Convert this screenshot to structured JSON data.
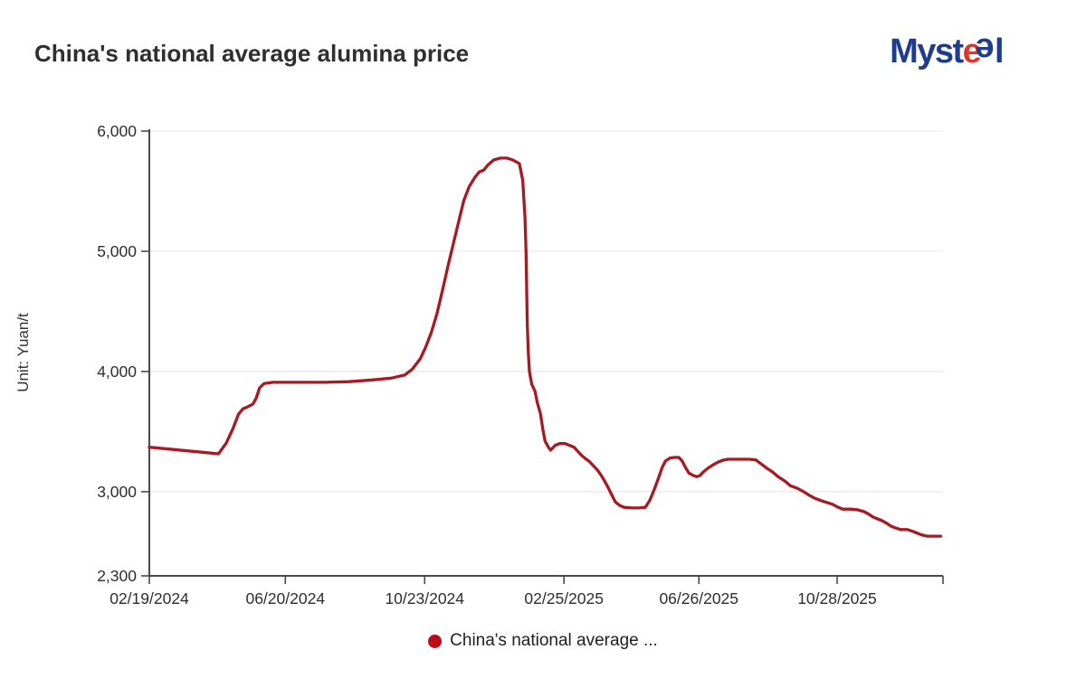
{
  "header": {
    "title": "China's national average alumina price",
    "logo": {
      "myst": "Myst",
      "e_red": "e",
      "e_flip": "e",
      "l": "l",
      "navy": "#1e3d8f",
      "red": "#e2352b"
    }
  },
  "axis_style": {
    "axis_color": "#4a4a4a",
    "grid_color": "#e8e9ec",
    "tick_label_color": "#2d2d2d"
  },
  "legend": {
    "marker_color": "#c00718"
  },
  "chart_data": {
    "type": "line",
    "title": "China's national average alumina price",
    "xlabel": "",
    "ylabel": "Unit: Yuan/t",
    "ylim": [
      2300,
      6000
    ],
    "x_range": [
      "2024-02-19",
      "2026-01-31"
    ],
    "grid": true,
    "legend_position": "bottom",
    "y_ticks": [
      {
        "value": 2300,
        "label": "2,300"
      },
      {
        "value": 3000,
        "label": "3,000"
      },
      {
        "value": 4000,
        "label": "4,000"
      },
      {
        "value": 5000,
        "label": "5,000"
      },
      {
        "value": 6000,
        "label": "6,000"
      }
    ],
    "x_ticks": [
      {
        "date": "2024-02-19",
        "label": "02/19/2024"
      },
      {
        "date": "2024-06-20",
        "label": "06/20/2024"
      },
      {
        "date": "2024-10-23",
        "label": "10/23/2024"
      },
      {
        "date": "2025-02-25",
        "label": "02/25/2025"
      },
      {
        "date": "2025-06-26",
        "label": "06/26/2025"
      },
      {
        "date": "2025-10-28",
        "label": "10/28/2025"
      }
    ],
    "series": [
      {
        "name": "China's national average ...",
        "color": "#a81a22",
        "points": [
          [
            "2024-02-19",
            3370
          ],
          [
            "2024-03-07",
            3355
          ],
          [
            "2024-03-24",
            3340
          ],
          [
            "2024-04-10",
            3325
          ],
          [
            "2024-04-21",
            3315
          ],
          [
            "2024-04-28",
            3405
          ],
          [
            "2024-05-04",
            3525
          ],
          [
            "2024-05-09",
            3645
          ],
          [
            "2024-05-13",
            3690
          ],
          [
            "2024-05-17",
            3705
          ],
          [
            "2024-05-22",
            3730
          ],
          [
            "2024-05-25",
            3780
          ],
          [
            "2024-05-28",
            3865
          ],
          [
            "2024-06-01",
            3900
          ],
          [
            "2024-06-09",
            3910
          ],
          [
            "2024-07-02",
            3910
          ],
          [
            "2024-07-25",
            3910
          ],
          [
            "2024-08-16",
            3915
          ],
          [
            "2024-09-06",
            3930
          ],
          [
            "2024-09-23",
            3945
          ],
          [
            "2024-10-05",
            3970
          ],
          [
            "2024-10-12",
            4020
          ],
          [
            "2024-10-19",
            4105
          ],
          [
            "2024-10-24",
            4205
          ],
          [
            "2024-10-29",
            4325
          ],
          [
            "2024-11-03",
            4480
          ],
          [
            "2024-11-08",
            4675
          ],
          [
            "2024-11-13",
            4880
          ],
          [
            "2024-11-18",
            5075
          ],
          [
            "2024-11-23",
            5265
          ],
          [
            "2024-11-27",
            5420
          ],
          [
            "2024-12-02",
            5540
          ],
          [
            "2024-12-07",
            5615
          ],
          [
            "2024-12-11",
            5660
          ],
          [
            "2024-12-15",
            5675
          ],
          [
            "2024-12-19",
            5720
          ],
          [
            "2024-12-24",
            5760
          ],
          [
            "2024-12-30",
            5775
          ],
          [
            "2025-01-05",
            5775
          ],
          [
            "2025-01-10",
            5760
          ],
          [
            "2025-01-16",
            5730
          ],
          [
            "2025-01-19",
            5590
          ],
          [
            "2025-01-21",
            5280
          ],
          [
            "2025-01-22",
            4985
          ],
          [
            "2025-01-23",
            4400
          ],
          [
            "2025-01-24",
            4155
          ],
          [
            "2025-01-25",
            4000
          ],
          [
            "2025-01-27",
            3895
          ],
          [
            "2025-01-30",
            3835
          ],
          [
            "2025-02-01",
            3745
          ],
          [
            "2025-02-04",
            3645
          ],
          [
            "2025-02-06",
            3520
          ],
          [
            "2025-02-08",
            3420
          ],
          [
            "2025-02-11",
            3370
          ],
          [
            "2025-02-13",
            3345
          ],
          [
            "2025-02-17",
            3385
          ],
          [
            "2025-02-21",
            3400
          ],
          [
            "2025-02-26",
            3400
          ],
          [
            "2025-03-02",
            3385
          ],
          [
            "2025-03-06",
            3370
          ],
          [
            "2025-03-09",
            3340
          ],
          [
            "2025-03-13",
            3300
          ],
          [
            "2025-03-17",
            3270
          ],
          [
            "2025-03-20",
            3250
          ],
          [
            "2025-03-23",
            3220
          ],
          [
            "2025-03-27",
            3180
          ],
          [
            "2025-03-30",
            3140
          ],
          [
            "2025-04-02",
            3095
          ],
          [
            "2025-04-05",
            3045
          ],
          [
            "2025-04-09",
            2970
          ],
          [
            "2025-04-12",
            2915
          ],
          [
            "2025-04-16",
            2885
          ],
          [
            "2025-04-20",
            2870
          ],
          [
            "2025-04-27",
            2865
          ],
          [
            "2025-05-03",
            2865
          ],
          [
            "2025-05-09",
            2870
          ],
          [
            "2025-05-13",
            2930
          ],
          [
            "2025-05-17",
            3020
          ],
          [
            "2025-05-21",
            3120
          ],
          [
            "2025-05-24",
            3200
          ],
          [
            "2025-05-27",
            3255
          ],
          [
            "2025-05-31",
            3280
          ],
          [
            "2025-06-04",
            3285
          ],
          [
            "2025-06-08",
            3285
          ],
          [
            "2025-06-11",
            3255
          ],
          [
            "2025-06-14",
            3200
          ],
          [
            "2025-06-17",
            3155
          ],
          [
            "2025-06-21",
            3135
          ],
          [
            "2025-06-24",
            3125
          ],
          [
            "2025-06-27",
            3135
          ],
          [
            "2025-06-30",
            3165
          ],
          [
            "2025-07-04",
            3195
          ],
          [
            "2025-07-09",
            3225
          ],
          [
            "2025-07-13",
            3245
          ],
          [
            "2025-07-17",
            3260
          ],
          [
            "2025-07-22",
            3270
          ],
          [
            "2025-07-28",
            3270
          ],
          [
            "2025-08-04",
            3270
          ],
          [
            "2025-08-10",
            3270
          ],
          [
            "2025-08-16",
            3265
          ],
          [
            "2025-08-21",
            3230
          ],
          [
            "2025-08-26",
            3195
          ],
          [
            "2025-08-31",
            3165
          ],
          [
            "2025-09-05",
            3125
          ],
          [
            "2025-09-11",
            3090
          ],
          [
            "2025-09-16",
            3050
          ],
          [
            "2025-09-22",
            3030
          ],
          [
            "2025-09-28",
            3000
          ],
          [
            "2025-10-03",
            2970
          ],
          [
            "2025-10-08",
            2945
          ],
          [
            "2025-10-14",
            2925
          ],
          [
            "2025-10-19",
            2910
          ],
          [
            "2025-10-24",
            2895
          ],
          [
            "2025-10-29",
            2870
          ],
          [
            "2025-11-02",
            2855
          ],
          [
            "2025-11-09",
            2855
          ],
          [
            "2025-11-15",
            2850
          ],
          [
            "2025-11-21",
            2835
          ],
          [
            "2025-11-25",
            2815
          ],
          [
            "2025-11-29",
            2790
          ],
          [
            "2025-12-03",
            2775
          ],
          [
            "2025-12-07",
            2760
          ],
          [
            "2025-12-11",
            2740
          ],
          [
            "2025-12-15",
            2715
          ],
          [
            "2025-12-19",
            2700
          ],
          [
            "2025-12-24",
            2685
          ],
          [
            "2025-12-30",
            2685
          ],
          [
            "2026-01-04",
            2670
          ],
          [
            "2026-01-08",
            2655
          ],
          [
            "2026-01-12",
            2640
          ],
          [
            "2026-01-17",
            2630
          ],
          [
            "2026-01-23",
            2630
          ],
          [
            "2026-01-29",
            2630
          ]
        ]
      }
    ]
  }
}
